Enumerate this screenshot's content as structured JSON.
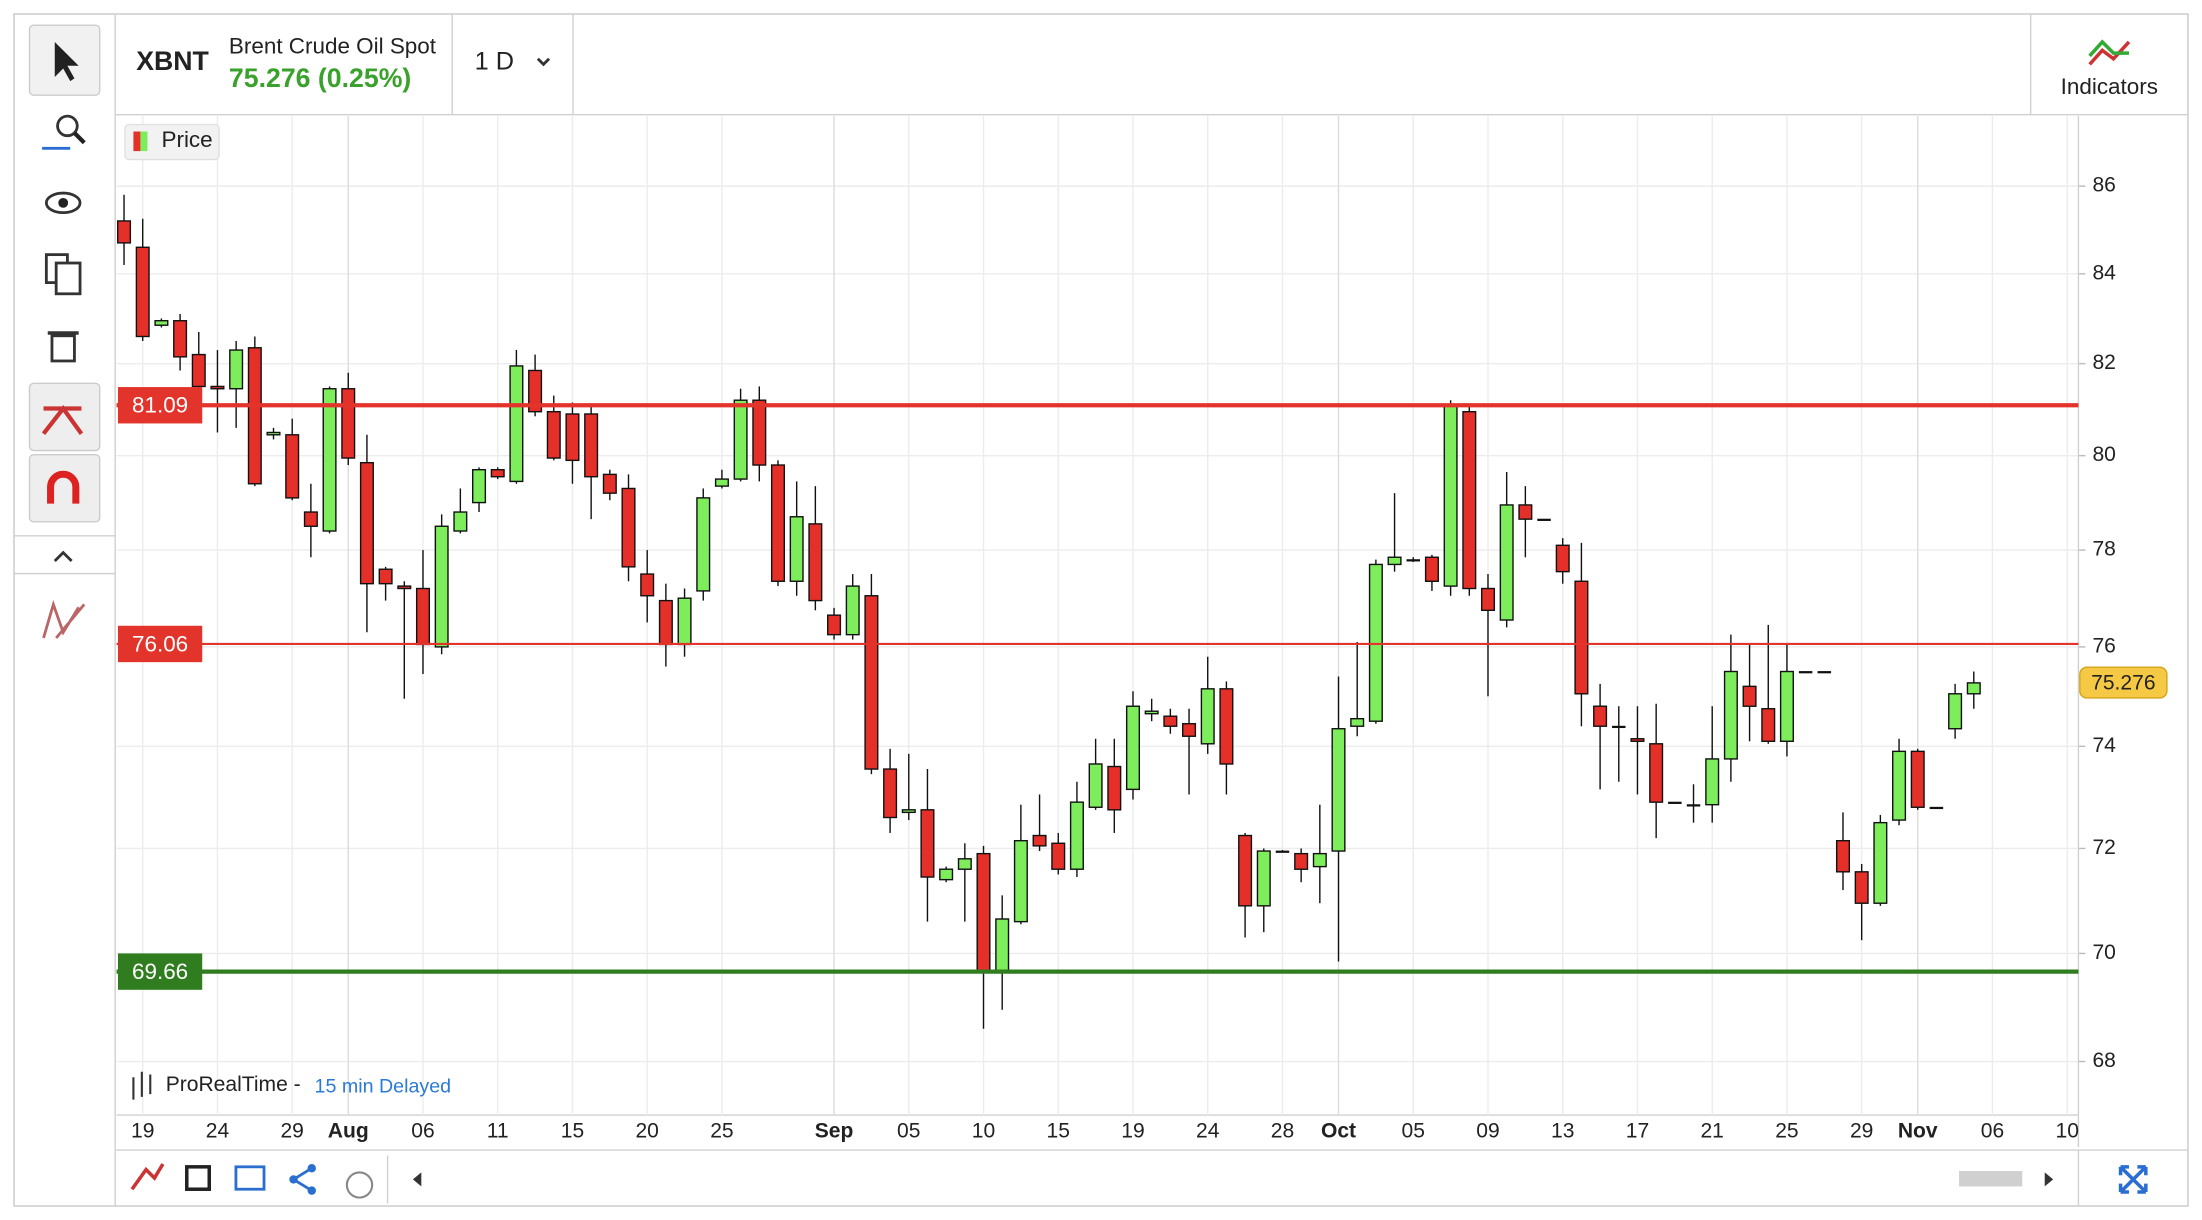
{
  "header": {
    "symbol": "XBNT",
    "name": "Brent Crude Oil Spot",
    "quote": "75.276 (0.25%)",
    "timeframe": "1 D",
    "indicators": "Indicators"
  },
  "footer": {
    "source": "ProRealTime -",
    "delay": "15 min Delayed"
  },
  "chart_data": {
    "type": "candlestick",
    "legend": "Price",
    "log_scale": true,
    "grid": true,
    "up_color": "#7ded5c",
    "down_color": "#e5302a",
    "categories": [
      null,
      "19",
      null,
      null,
      null,
      "24",
      null,
      null,
      null,
      "29",
      null,
      null,
      "Aug",
      null,
      null,
      null,
      "06",
      null,
      null,
      null,
      "11",
      null,
      null,
      null,
      "15",
      null,
      null,
      null,
      "20",
      null,
      null,
      null,
      "25",
      null,
      null,
      null,
      null,
      null,
      "Sep",
      null,
      null,
      null,
      "05",
      null,
      null,
      null,
      "10",
      null,
      null,
      null,
      "15",
      null,
      null,
      null,
      "19",
      null,
      null,
      null,
      "24",
      null,
      null,
      null,
      "28",
      null,
      null,
      "Oct",
      null,
      null,
      null,
      "05",
      null,
      null,
      null,
      "09",
      null,
      null,
      null,
      "13",
      null,
      null,
      null,
      "17",
      null,
      null,
      null,
      "21",
      null,
      null,
      null,
      "25",
      null,
      null,
      null,
      "29",
      null,
      null,
      "Nov",
      null,
      null,
      null,
      "06",
      null,
      null,
      null,
      "10"
    ],
    "open": [
      85.2,
      84.6,
      82.85,
      82.95,
      82.2,
      81.5,
      81.45,
      82.35,
      80.45,
      80.45,
      78.8,
      78.4,
      81.45,
      79.85,
      77.6,
      77.25,
      77.2,
      76.0,
      78.4,
      79.0,
      79.7,
      79.45,
      81.85,
      80.95,
      80.9,
      80.9,
      79.6,
      79.3,
      77.5,
      76.95,
      76.05,
      77.15,
      79.35,
      79.5,
      81.2,
      79.8,
      77.35,
      78.55,
      76.65,
      76.25,
      77.05,
      73.55,
      72.7,
      72.75,
      71.4,
      71.6,
      71.9,
      69.65,
      70.6,
      72.25,
      72.1,
      71.6,
      72.8,
      73.6,
      73.15,
      74.65,
      74.6,
      74.45,
      74.05,
      75.15,
      72.25,
      70.9,
      71.95,
      71.9,
      71.65,
      71.95,
      74.4,
      74.5,
      77.7,
      77.8,
      77.85,
      77.25,
      80.95,
      77.2,
      76.55,
      78.95,
      78.65,
      78.1,
      77.35,
      74.8,
      74.4,
      74.15,
      74.05,
      72.9,
      72.85,
      72.85,
      73.75,
      75.2,
      74.75,
      74.1,
      75.5,
      75.5,
      72.15,
      71.55,
      70.95,
      72.55,
      73.9,
      72.8,
      74.35,
      75.05,
      null,
      null,
      null,
      null,
      null
    ],
    "high": [
      85.8,
      85.25,
      83.0,
      83.1,
      82.7,
      82.3,
      82.5,
      82.6,
      80.6,
      80.8,
      79.4,
      81.5,
      81.8,
      80.45,
      77.65,
      77.35,
      78.0,
      78.75,
      79.3,
      79.75,
      79.75,
      82.3,
      82.2,
      81.3,
      81.15,
      81.05,
      79.7,
      79.6,
      78.0,
      77.3,
      77.2,
      79.3,
      79.7,
      81.45,
      81.5,
      79.9,
      79.45,
      79.35,
      76.8,
      77.5,
      77.5,
      73.95,
      73.85,
      73.55,
      71.65,
      72.1,
      72.05,
      71.1,
      72.85,
      73.05,
      72.3,
      73.3,
      74.15,
      74.15,
      75.1,
      74.95,
      74.75,
      74.75,
      75.8,
      75.3,
      72.3,
      72.0,
      71.97,
      72.0,
      72.85,
      75.4,
      76.1,
      77.8,
      79.2,
      77.85,
      77.9,
      81.2,
      81.1,
      77.5,
      79.65,
      79.35,
      78.65,
      78.25,
      78.15,
      75.25,
      74.8,
      74.8,
      74.85,
      72.9,
      73.25,
      74.8,
      76.25,
      76.05,
      76.45,
      76.05,
      75.5,
      75.5,
      72.7,
      71.7,
      72.65,
      74.15,
      73.95,
      72.8,
      75.25,
      75.5,
      null,
      null,
      null,
      null,
      null
    ],
    "low": [
      84.2,
      82.5,
      82.8,
      81.85,
      80.85,
      80.5,
      80.6,
      79.35,
      80.35,
      79.05,
      77.85,
      78.35,
      79.8,
      76.3,
      76.95,
      74.95,
      75.45,
      75.85,
      78.35,
      78.8,
      79.5,
      79.4,
      80.85,
      79.9,
      79.4,
      78.65,
      79.05,
      77.35,
      76.5,
      75.6,
      75.8,
      76.95,
      79.3,
      79.45,
      79.45,
      77.25,
      77.05,
      76.75,
      76.15,
      76.15,
      73.45,
      72.3,
      72.55,
      70.6,
      71.35,
      70.6,
      68.6,
      68.95,
      70.55,
      71.95,
      71.5,
      71.45,
      72.75,
      72.3,
      72.95,
      74.5,
      74.25,
      73.05,
      73.85,
      73.05,
      70.3,
      70.4,
      71.93,
      71.35,
      70.95,
      69.85,
      74.2,
      74.45,
      77.55,
      77.75,
      77.15,
      77.05,
      77.05,
      75.0,
      76.4,
      77.85,
      78.65,
      77.3,
      74.4,
      73.15,
      73.3,
      73.05,
      72.2,
      72.9,
      72.5,
      72.5,
      73.3,
      74.1,
      74.05,
      73.8,
      75.5,
      75.5,
      71.2,
      70.25,
      70.9,
      72.45,
      72.75,
      72.8,
      74.15,
      74.75,
      null,
      null,
      null,
      null,
      null
    ],
    "close": [
      84.7,
      82.6,
      82.95,
      82.15,
      81.5,
      81.45,
      82.3,
      79.4,
      80.5,
      79.1,
      78.5,
      81.45,
      79.95,
      77.3,
      77.3,
      77.2,
      76.05,
      78.5,
      78.8,
      79.7,
      79.55,
      81.95,
      80.95,
      79.95,
      79.9,
      79.55,
      79.2,
      77.65,
      77.05,
      76.05,
      77.0,
      79.1,
      79.5,
      81.2,
      79.8,
      77.35,
      78.7,
      76.95,
      76.25,
      77.25,
      73.55,
      72.6,
      72.75,
      71.45,
      71.6,
      71.8,
      69.65,
      70.65,
      72.15,
      72.05,
      71.6,
      72.9,
      73.65,
      72.75,
      74.8,
      74.7,
      74.4,
      74.2,
      75.15,
      73.65,
      70.9,
      71.95,
      71.95,
      71.6,
      71.9,
      74.35,
      74.55,
      77.7,
      77.85,
      77.8,
      77.35,
      81.1,
      77.2,
      76.75,
      78.95,
      78.65,
      78.65,
      77.55,
      75.05,
      74.4,
      74.4,
      74.1,
      72.9,
      72.9,
      72.85,
      73.75,
      75.5,
      74.8,
      74.1,
      75.5,
      75.5,
      75.5,
      71.55,
      70.95,
      72.5,
      73.9,
      72.8,
      72.8,
      75.05,
      75.27,
      null,
      null,
      null,
      null,
      null
    ],
    "ylim": [
      67.03,
      87.63
    ],
    "yticks": [
      68,
      70,
      72,
      74,
      76,
      78,
      80,
      82,
      84,
      86
    ],
    "levels": [
      {
        "value": 81.09,
        "color": "#e3342b",
        "weight": "bold"
      },
      {
        "value": 76.06,
        "color": "#e3342b",
        "weight": "normal"
      },
      {
        "value": 69.66,
        "color": "#2f7d1f",
        "weight": "bold"
      }
    ],
    "last_price": 75.276,
    "last_price_color": "#f6c945"
  }
}
